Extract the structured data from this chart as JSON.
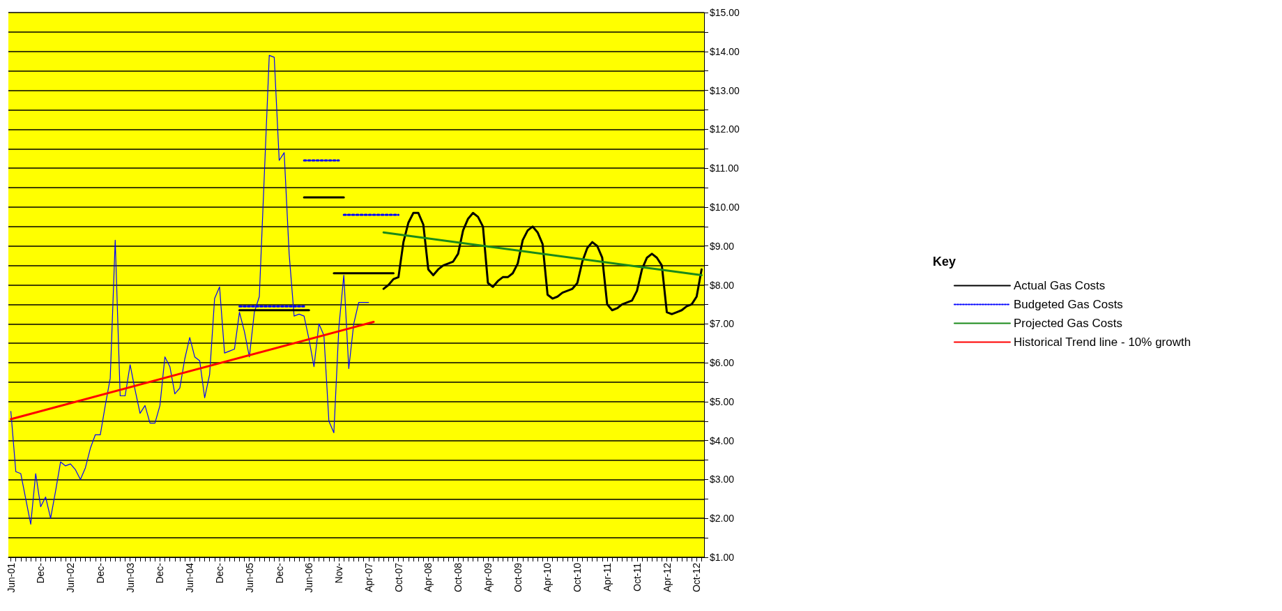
{
  "chart_data": {
    "type": "line",
    "categories": [
      "Jun-01",
      null,
      null,
      null,
      null,
      null,
      "Dec-",
      null,
      null,
      null,
      null,
      null,
      "Jun-02",
      null,
      null,
      null,
      null,
      null,
      "Dec-",
      null,
      null,
      null,
      null,
      null,
      "Jun-03",
      null,
      null,
      null,
      null,
      null,
      "Dec-",
      null,
      null,
      null,
      null,
      null,
      "Jun-04",
      null,
      null,
      null,
      null,
      null,
      "Dec-",
      null,
      null,
      null,
      null,
      null,
      "Jun-05",
      null,
      null,
      null,
      null,
      null,
      "Dec-",
      null,
      null,
      null,
      null,
      null,
      "Jun-06",
      null,
      null,
      null,
      null,
      null,
      "Nov-",
      null,
      null,
      null,
      null,
      null,
      "Apr-07",
      null,
      null,
      null,
      null,
      null,
      "Oct-07",
      null,
      null,
      null,
      null,
      null,
      "Apr-08",
      null,
      null,
      null,
      null,
      null,
      "Oct-08",
      null,
      null,
      null,
      null,
      null,
      "Apr-09",
      null,
      null,
      null,
      null,
      null,
      "Oct-09",
      null,
      null,
      null,
      null,
      null,
      "Apr-10",
      null,
      null,
      null,
      null,
      null,
      "Oct-10",
      null,
      null,
      null,
      null,
      null,
      "Apr-11",
      null,
      null,
      null,
      null,
      null,
      "Oct-11",
      null,
      null,
      null,
      null,
      null,
      "Apr-12",
      null,
      null,
      null,
      null,
      null,
      "Oct-12",
      null
    ],
    "series": [
      {
        "color": "#0000ff",
        "line_style": "solid",
        "values": [
          4.75,
          3.2,
          3.15,
          2.5,
          1.85,
          3.15,
          2.3,
          2.55,
          2.0,
          2.7,
          3.45,
          3.35,
          3.4,
          3.25,
          3.0,
          3.3,
          3.8,
          4.15,
          4.15,
          4.9,
          5.6,
          9.15,
          5.15,
          5.15,
          5.95,
          5.3,
          4.7,
          4.9,
          4.45,
          4.45,
          4.9,
          6.15,
          5.9,
          5.2,
          5.35,
          6.1,
          6.65,
          6.15,
          6.05,
          5.1,
          5.7,
          7.65,
          7.95,
          6.25,
          6.3,
          6.35,
          7.3,
          6.8,
          6.15,
          7.3,
          7.7,
          10.8,
          13.9,
          13.85,
          11.2,
          11.4,
          8.8,
          7.2,
          7.25,
          7.2,
          6.6,
          5.9,
          7.0,
          6.7,
          4.5,
          4.2,
          6.9,
          8.25,
          5.85,
          7.0,
          7.55,
          7.55,
          7.55,
          null,
          null,
          null,
          null,
          null,
          null,
          null,
          null,
          null,
          null,
          null,
          null,
          null,
          null,
          null,
          null,
          null,
          null,
          null,
          null,
          null,
          null,
          null,
          null,
          null,
          null,
          null,
          null,
          null,
          null,
          null,
          null,
          null,
          null,
          null,
          null,
          null,
          null,
          null,
          null,
          null,
          null,
          null,
          null,
          null,
          null,
          null,
          null,
          null,
          null,
          null,
          null,
          null,
          null,
          null,
          null,
          null,
          null,
          null,
          null,
          null,
          null,
          null,
          null,
          null,
          null,
          null
        ]
      },
      {
        "name": "Actual Gas Costs",
        "color": "#000000",
        "line_style": "solid",
        "values": [
          null,
          null,
          null,
          null,
          null,
          null,
          null,
          null,
          null,
          null,
          null,
          null,
          null,
          null,
          null,
          null,
          null,
          null,
          null,
          null,
          null,
          null,
          null,
          null,
          null,
          null,
          null,
          null,
          null,
          null,
          null,
          null,
          null,
          null,
          null,
          null,
          null,
          null,
          null,
          null,
          null,
          null,
          null,
          null,
          null,
          null,
          null,
          null,
          null,
          null,
          null,
          null,
          null,
          null,
          null,
          null,
          null,
          null,
          null,
          null,
          null,
          null,
          null,
          null,
          null,
          null,
          null,
          null,
          null,
          null,
          null,
          null,
          null,
          null,
          null,
          7.9,
          8.0,
          8.15,
          8.2,
          9.1,
          9.6,
          9.85,
          9.85,
          9.55,
          8.4,
          8.25,
          8.4,
          8.5,
          8.55,
          8.6,
          8.8,
          9.4,
          9.7,
          9.85,
          9.75,
          9.5,
          8.05,
          7.95,
          8.1,
          8.2,
          8.2,
          8.3,
          8.55,
          9.15,
          9.4,
          9.5,
          9.35,
          9.05,
          7.75,
          7.65,
          7.7,
          7.8,
          7.85,
          7.9,
          8.05,
          8.6,
          8.95,
          9.1,
          9.0,
          8.7,
          7.5,
          7.35,
          7.4,
          7.5,
          7.55,
          7.6,
          7.85,
          8.4,
          8.7,
          8.8,
          8.7,
          8.5,
          7.3,
          7.25,
          7.3,
          7.35,
          7.45,
          7.5,
          7.7,
          8.4
        ]
      },
      {
        "color": "#000000",
        "line_style": "solid",
        "values": [
          null,
          null,
          null,
          null,
          null,
          null,
          null,
          null,
          null,
          null,
          null,
          null,
          null,
          null,
          null,
          null,
          null,
          null,
          null,
          null,
          null,
          null,
          null,
          null,
          null,
          null,
          null,
          null,
          null,
          null,
          null,
          null,
          null,
          null,
          null,
          null,
          null,
          null,
          null,
          null,
          null,
          null,
          null,
          null,
          null,
          null,
          7.35,
          7.35,
          7.35,
          7.35,
          7.35,
          7.35,
          7.35,
          7.35,
          7.35,
          7.35,
          7.35,
          7.35,
          7.35,
          7.35,
          7.35,
          null,
          null,
          null,
          null,
          null,
          null,
          null,
          null,
          null,
          null,
          null,
          null,
          null,
          null,
          null,
          null,
          null,
          null,
          null,
          null,
          null,
          null,
          null,
          null,
          null,
          null,
          null,
          null,
          null,
          null,
          null,
          null,
          null,
          null,
          null,
          null,
          null,
          null,
          null,
          null,
          null,
          null,
          null,
          null,
          null,
          null,
          null,
          null,
          null,
          null,
          null,
          null,
          null,
          null,
          null,
          null,
          null,
          null,
          null,
          null,
          null,
          null,
          null,
          null,
          null,
          null,
          null,
          null,
          null,
          null,
          null,
          null,
          null,
          null,
          null,
          null,
          null,
          null,
          null
        ]
      },
      {
        "color": "#000000",
        "line_style": "solid",
        "values": [
          null,
          null,
          null,
          null,
          null,
          null,
          null,
          null,
          null,
          null,
          null,
          null,
          null,
          null,
          null,
          null,
          null,
          null,
          null,
          null,
          null,
          null,
          null,
          null,
          null,
          null,
          null,
          null,
          null,
          null,
          null,
          null,
          null,
          null,
          null,
          null,
          null,
          null,
          null,
          null,
          null,
          null,
          null,
          null,
          null,
          null,
          null,
          null,
          null,
          null,
          null,
          null,
          null,
          null,
          null,
          null,
          null,
          null,
          null,
          10.25,
          10.25,
          10.25,
          10.25,
          10.25,
          10.25,
          10.25,
          10.25,
          10.25,
          null,
          null,
          null,
          null,
          null,
          null,
          null,
          null,
          null,
          null,
          null,
          null,
          null,
          null,
          null,
          null,
          null,
          null,
          null,
          null,
          null,
          null,
          null,
          null,
          null,
          null,
          null,
          null,
          null,
          null,
          null,
          null,
          null,
          null,
          null,
          null,
          null,
          null,
          null,
          null,
          null,
          null,
          null,
          null,
          null,
          null,
          null,
          null,
          null,
          null,
          null,
          null,
          null,
          null,
          null,
          null,
          null,
          null,
          null,
          null,
          null,
          null,
          null,
          null,
          null,
          null,
          null,
          null,
          null,
          null,
          null,
          null
        ]
      },
      {
        "color": "#000000",
        "line_style": "solid",
        "values": [
          null,
          null,
          null,
          null,
          null,
          null,
          null,
          null,
          null,
          null,
          null,
          null,
          null,
          null,
          null,
          null,
          null,
          null,
          null,
          null,
          null,
          null,
          null,
          null,
          null,
          null,
          null,
          null,
          null,
          null,
          null,
          null,
          null,
          null,
          null,
          null,
          null,
          null,
          null,
          null,
          null,
          null,
          null,
          null,
          null,
          null,
          null,
          null,
          null,
          null,
          null,
          null,
          null,
          null,
          null,
          null,
          null,
          null,
          null,
          null,
          null,
          null,
          null,
          null,
          null,
          8.3,
          8.3,
          8.3,
          8.3,
          8.3,
          8.3,
          8.3,
          8.3,
          8.3,
          8.3,
          8.3,
          8.3,
          8.3,
          null,
          null,
          null,
          null,
          null,
          null,
          null,
          null,
          null,
          null,
          null,
          null,
          null,
          null,
          null,
          null,
          null,
          null,
          null,
          null,
          null,
          null,
          null,
          null,
          null,
          null,
          null,
          null,
          null,
          null,
          null,
          null,
          null,
          null,
          null,
          null,
          null,
          null,
          null,
          null,
          null,
          null,
          null,
          null,
          null,
          null,
          null,
          null,
          null,
          null,
          null,
          null,
          null,
          null,
          null,
          null,
          null,
          null,
          null,
          null,
          null,
          null
        ]
      },
      {
        "name": "Budgeted Gas Costs",
        "color": "#0000ff",
        "line_style": "dotted",
        "values": [
          null,
          null,
          null,
          null,
          null,
          null,
          null,
          null,
          null,
          null,
          null,
          null,
          null,
          null,
          null,
          null,
          null,
          null,
          null,
          null,
          null,
          null,
          null,
          null,
          null,
          null,
          null,
          null,
          null,
          null,
          null,
          null,
          null,
          null,
          null,
          null,
          null,
          null,
          null,
          null,
          null,
          null,
          null,
          null,
          null,
          null,
          7.45,
          7.45,
          7.45,
          7.45,
          7.45,
          7.45,
          7.45,
          7.45,
          7.45,
          7.45,
          7.45,
          7.45,
          7.45,
          7.45,
          null,
          null,
          null,
          null,
          null,
          null,
          null,
          null,
          null,
          null,
          null,
          null,
          null,
          null,
          null,
          null,
          null,
          null,
          null,
          null,
          null,
          null,
          null,
          null,
          null,
          null,
          null,
          null,
          null,
          null,
          null,
          null,
          null,
          null,
          null,
          null,
          null,
          null,
          null,
          null,
          null,
          null,
          null,
          null,
          null,
          null,
          null,
          null,
          null,
          null,
          null,
          null,
          null,
          null,
          null,
          null,
          null,
          null,
          null,
          null,
          null,
          null,
          null,
          null,
          null,
          null,
          null,
          null,
          null,
          null,
          null,
          null,
          null,
          null,
          null,
          null,
          null,
          null,
          null,
          null
        ]
      },
      {
        "color": "#0000ff",
        "line_style": "dotted",
        "values": [
          null,
          null,
          null,
          null,
          null,
          null,
          null,
          null,
          null,
          null,
          null,
          null,
          null,
          null,
          null,
          null,
          null,
          null,
          null,
          null,
          null,
          null,
          null,
          null,
          null,
          null,
          null,
          null,
          null,
          null,
          null,
          null,
          null,
          null,
          null,
          null,
          null,
          null,
          null,
          null,
          null,
          null,
          null,
          null,
          null,
          null,
          null,
          null,
          null,
          null,
          null,
          null,
          null,
          null,
          null,
          null,
          null,
          null,
          null,
          11.2,
          11.2,
          11.2,
          11.2,
          11.2,
          11.2,
          11.2,
          11.2,
          null,
          null,
          null,
          null,
          null,
          null,
          null,
          null,
          null,
          null,
          null,
          null,
          null,
          null,
          null,
          null,
          null,
          null,
          null,
          null,
          null,
          null,
          null,
          null,
          null,
          null,
          null,
          null,
          null,
          null,
          null,
          null,
          null,
          null,
          null,
          null,
          null,
          null,
          null,
          null,
          null,
          null,
          null,
          null,
          null,
          null,
          null,
          null,
          null,
          null,
          null,
          null,
          null,
          null,
          null,
          null,
          null,
          null,
          null,
          null,
          null,
          null,
          null,
          null,
          null,
          null,
          null,
          null,
          null,
          null,
          null,
          null,
          null
        ]
      },
      {
        "color": "#0000ff",
        "line_style": "dotted",
        "values": [
          null,
          null,
          null,
          null,
          null,
          null,
          null,
          null,
          null,
          null,
          null,
          null,
          null,
          null,
          null,
          null,
          null,
          null,
          null,
          null,
          null,
          null,
          null,
          null,
          null,
          null,
          null,
          null,
          null,
          null,
          null,
          null,
          null,
          null,
          null,
          null,
          null,
          null,
          null,
          null,
          null,
          null,
          null,
          null,
          null,
          null,
          null,
          null,
          null,
          null,
          null,
          null,
          null,
          null,
          null,
          null,
          null,
          null,
          null,
          null,
          null,
          null,
          null,
          null,
          null,
          null,
          null,
          9.8,
          9.8,
          9.8,
          9.8,
          9.8,
          9.8,
          9.8,
          9.8,
          9.8,
          9.8,
          9.8,
          9.8,
          null,
          null,
          null,
          null,
          null,
          null,
          null,
          null,
          null,
          null,
          null,
          null,
          null,
          null,
          null,
          null,
          null,
          null,
          null,
          null,
          null,
          null,
          null,
          null,
          null,
          null,
          null,
          null,
          null,
          null,
          null,
          null,
          null,
          null,
          null,
          null,
          null,
          null,
          null,
          null,
          null,
          null,
          null,
          null,
          null,
          null,
          null,
          null,
          null,
          null,
          null,
          null,
          null,
          null,
          null,
          null,
          null,
          null,
          null,
          null,
          null
        ]
      },
      {
        "name": "Projected Gas Costs",
        "color": "#1a8a1a",
        "line_style": "solid",
        "values": [
          null,
          null,
          null,
          null,
          null,
          null,
          null,
          null,
          null,
          null,
          null,
          null,
          null,
          null,
          null,
          null,
          null,
          null,
          null,
          null,
          null,
          null,
          null,
          null,
          null,
          null,
          null,
          null,
          null,
          null,
          null,
          null,
          null,
          null,
          null,
          null,
          null,
          null,
          null,
          null,
          null,
          null,
          null,
          null,
          null,
          null,
          null,
          null,
          null,
          null,
          null,
          null,
          null,
          null,
          null,
          null,
          null,
          null,
          null,
          null,
          null,
          null,
          null,
          null,
          null,
          null,
          null,
          null,
          null,
          null,
          null,
          null,
          null,
          null,
          null,
          9.35,
          null,
          null,
          null,
          null,
          null,
          null,
          null,
          null,
          null,
          null,
          null,
          null,
          null,
          null,
          null,
          null,
          null,
          null,
          null,
          null,
          null,
          null,
          null,
          null,
          null,
          null,
          null,
          null,
          null,
          null,
          null,
          null,
          null,
          null,
          null,
          null,
          null,
          null,
          null,
          null,
          null,
          null,
          null,
          null,
          null,
          null,
          null,
          null,
          null,
          null,
          null,
          null,
          null,
          null,
          null,
          null,
          null,
          null,
          null,
          null,
          null,
          null,
          null,
          8.25
        ]
      },
      {
        "name": "Historical Trend line - 10% growth",
        "color": "#ff0000",
        "line_style": "solid",
        "values": [
          4.55,
          null,
          null,
          null,
          null,
          null,
          null,
          null,
          null,
          null,
          null,
          null,
          null,
          null,
          null,
          null,
          null,
          null,
          null,
          null,
          null,
          null,
          null,
          null,
          null,
          null,
          null,
          null,
          null,
          null,
          null,
          null,
          null,
          null,
          null,
          null,
          null,
          null,
          null,
          null,
          null,
          null,
          null,
          null,
          null,
          null,
          null,
          null,
          null,
          null,
          null,
          null,
          null,
          null,
          null,
          null,
          null,
          null,
          null,
          null,
          null,
          null,
          null,
          null,
          null,
          null,
          null,
          null,
          null,
          null,
          null,
          null,
          null,
          7.05,
          null,
          null,
          null,
          null,
          null,
          null,
          null,
          null,
          null,
          null,
          null,
          null,
          null,
          null,
          null,
          null,
          null,
          null,
          null,
          null,
          null,
          null,
          null,
          null,
          null,
          null,
          null,
          null,
          null,
          null,
          null,
          null,
          null,
          null,
          null,
          null,
          null,
          null,
          null,
          null,
          null,
          null,
          null,
          null,
          null,
          null,
          null,
          null,
          null,
          null,
          null,
          null,
          null,
          null,
          null,
          null,
          null,
          null,
          null,
          null,
          null,
          null,
          null,
          null,
          null,
          null
        ]
      }
    ],
    "ylim": [
      1,
      15
    ],
    "yticks": [
      {
        "value": 1,
        "label": "$1.00"
      },
      {
        "value": 1.5,
        "label": null
      },
      {
        "value": 2,
        "label": "$2.00"
      },
      {
        "value": 2.5,
        "label": null
      },
      {
        "value": 3,
        "label": "$3.00"
      },
      {
        "value": 3.5,
        "label": null
      },
      {
        "value": 4,
        "label": "$4.00"
      },
      {
        "value": 4.5,
        "label": null
      },
      {
        "value": 5,
        "label": "$5.00"
      },
      {
        "value": 5.5,
        "label": null
      },
      {
        "value": 6,
        "label": "$6.00"
      },
      {
        "value": 6.5,
        "label": null
      },
      {
        "value": 7,
        "label": "$7.00"
      },
      {
        "value": 7.5,
        "label": null
      },
      {
        "value": 8,
        "label": "$8.00"
      },
      {
        "value": 8.5,
        "label": null
      },
      {
        "value": 9,
        "label": "$9.00"
      },
      {
        "value": 9.5,
        "label": null
      },
      {
        "value": 10,
        "label": "$10.00"
      },
      {
        "value": 10.5,
        "label": null
      },
      {
        "value": 11,
        "label": "$11.00"
      },
      {
        "value": 11.5,
        "label": null
      },
      {
        "value": 12,
        "label": "$12.00"
      },
      {
        "value": 12.5,
        "label": null
      },
      {
        "value": 13,
        "label": "$13.00"
      },
      {
        "value": 13.5,
        "label": null
      },
      {
        "value": 14,
        "label": "$14.00"
      },
      {
        "value": 14.5,
        "label": null
      },
      {
        "value": 15,
        "label": "$15.00"
      }
    ],
    "grid": "y",
    "legend": "right",
    "legend_title": "Key",
    "marker": "none"
  }
}
